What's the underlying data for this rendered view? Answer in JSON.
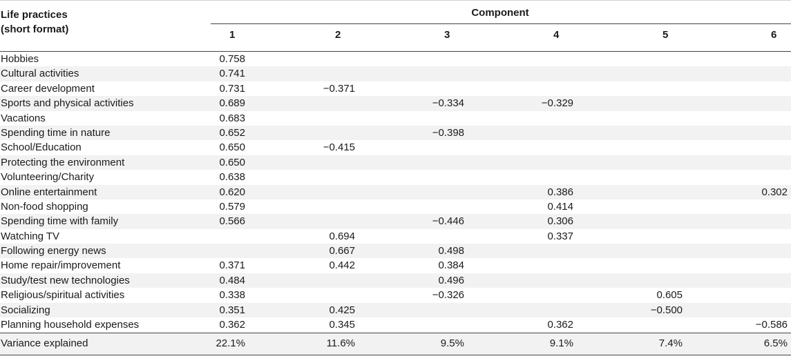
{
  "header": {
    "row_label_title_line1": "Life practices",
    "row_label_title_line2": "(short format)",
    "component_title": "Component",
    "columns": [
      "1",
      "2",
      "3",
      "4",
      "5",
      "6"
    ]
  },
  "rows": [
    {
      "label": "Hobbies",
      "values": [
        "0.758",
        "",
        "",
        "",
        "",
        ""
      ]
    },
    {
      "label": "Cultural activities",
      "values": [
        "0.741",
        "",
        "",
        "",
        "",
        ""
      ]
    },
    {
      "label": "Career development",
      "values": [
        "0.731",
        "−0.371",
        "",
        "",
        "",
        ""
      ]
    },
    {
      "label": "Sports and physical activities",
      "values": [
        "0.689",
        "",
        "−0.334",
        "−0.329",
        "",
        ""
      ]
    },
    {
      "label": "Vacations",
      "values": [
        "0.683",
        "",
        "",
        "",
        "",
        ""
      ]
    },
    {
      "label": "Spending time in nature",
      "values": [
        "0.652",
        "",
        "−0.398",
        "",
        "",
        ""
      ]
    },
    {
      "label": "School/Education",
      "values": [
        "0.650",
        "−0.415",
        "",
        "",
        "",
        ""
      ]
    },
    {
      "label": "Protecting the environment",
      "values": [
        "0.650",
        "",
        "",
        "",
        "",
        ""
      ]
    },
    {
      "label": "Volunteering/Charity",
      "values": [
        "0.638",
        "",
        "",
        "",
        "",
        ""
      ]
    },
    {
      "label": "Online entertainment",
      "values": [
        "0.620",
        "",
        "",
        "0.386",
        "",
        "0.302"
      ]
    },
    {
      "label": "Non-food shopping",
      "values": [
        "0.579",
        "",
        "",
        "0.414",
        "",
        ""
      ]
    },
    {
      "label": "Spending time with family",
      "values": [
        "0.566",
        "",
        "−0.446",
        "0.306",
        "",
        ""
      ]
    },
    {
      "label": "Watching TV",
      "values": [
        "",
        "0.694",
        "",
        "0.337",
        "",
        ""
      ]
    },
    {
      "label": "Following energy news",
      "values": [
        "",
        "0.667",
        "0.498",
        "",
        "",
        ""
      ]
    },
    {
      "label": "Home repair/improvement",
      "values": [
        "0.371",
        "0.442",
        "0.384",
        "",
        "",
        ""
      ]
    },
    {
      "label": "Study/test new technologies",
      "values": [
        "0.484",
        "",
        "0.496",
        "",
        "",
        ""
      ]
    },
    {
      "label": "Religious/spiritual activities",
      "values": [
        "0.338",
        "",
        "−0.326",
        "",
        "0.605",
        ""
      ]
    },
    {
      "label": "Socializing",
      "values": [
        "0.351",
        "0.425",
        "",
        "",
        "−0.500",
        ""
      ]
    },
    {
      "label": "Planning household expenses",
      "values": [
        "0.362",
        "0.345",
        "",
        "0.362",
        "",
        "−0.586"
      ]
    }
  ],
  "variance": {
    "label": "Variance explained",
    "values": [
      "22.1%",
      "11.6%",
      "9.5%",
      "9.1%",
      "7.4%",
      "6.5%"
    ]
  },
  "colors": {
    "alt_row_background": "#f2f2f2",
    "text": "#1a1a1a"
  }
}
